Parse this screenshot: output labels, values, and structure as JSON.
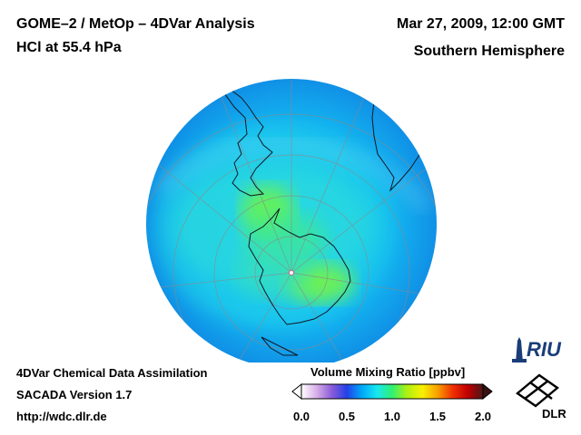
{
  "header": {
    "title": "GOME–2 / MetOp – 4DVar Analysis",
    "subtitle": "HCl at 55.4 hPa",
    "date": "Mar 27, 2009, 12:00 GMT",
    "region": "Southern Hemisphere"
  },
  "footer": {
    "line1": "4DVar Chemical Data Assimilation",
    "line2": "SACADA Version 1.7",
    "line3": "http://wdc.dlr.de"
  },
  "colorbar": {
    "label": "Volume Mixing Ratio [ppbv]",
    "ticks": [
      "0.0",
      "0.5",
      "1.0",
      "1.5",
      "2.0"
    ],
    "min": 0.0,
    "max": 2.0,
    "colors": [
      "#ffffff",
      "#d8b0e8",
      "#8a5cd8",
      "#2440e8",
      "#00a8f8",
      "#18e8f0",
      "#30f070",
      "#b0f010",
      "#f8f000",
      "#f8a000",
      "#f03000",
      "#c00000",
      "#4a1818"
    ]
  },
  "logos": {
    "riu": "RIU",
    "dlr": "DLR"
  }
}
